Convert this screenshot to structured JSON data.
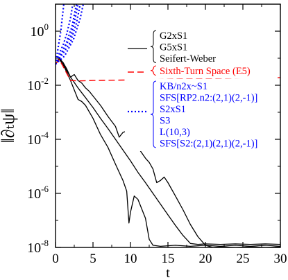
{
  "chart_data": {
    "type": "line",
    "xlabel": "t",
    "ylabel": "‖∂ₜψ‖",
    "xlim": [
      0,
      30
    ],
    "ylim": [
      1e-08,
      10
    ],
    "y_scale": "log",
    "x_ticks": [
      0,
      5,
      10,
      15,
      20,
      25,
      30
    ],
    "y_ticks": [
      {
        "value": 1,
        "base": "10",
        "exp": "0"
      },
      {
        "value": 0.01,
        "base": "10",
        "exp": "-2"
      },
      {
        "value": 0.0001,
        "base": "10",
        "exp": "-4"
      },
      {
        "value": 1e-06,
        "base": "10",
        "exp": "-6"
      },
      {
        "value": 1e-08,
        "base": "10",
        "exp": "-8"
      }
    ],
    "legend_groups": [
      {
        "style": "solid",
        "color": "#000000",
        "labels": [
          "G2xS1",
          "G5xS1",
          "Seifert-Weber"
        ]
      },
      {
        "style": "dashed",
        "color": "#ff0000",
        "labels": [
          "Sixth-Turn Space (E5)"
        ]
      },
      {
        "style": "dotted",
        "color": "#0000ff",
        "labels": [
          "KB/n2x~S1",
          "SFS[RP2.n2:(2,1)(2,-1)]",
          "S2xS1",
          "S3",
          "L(10,3)",
          "SFS[S2:(2,1)(2,1)(2,-1)]"
        ]
      }
    ],
    "series": [
      {
        "group": "solid",
        "color": "#000000",
        "points": [
          [
            0,
            0.06
          ],
          [
            0.5,
            0.1
          ],
          [
            1,
            0.07
          ],
          [
            1.5,
            0.04
          ],
          [
            2,
            0.02
          ],
          [
            3,
            0.008
          ],
          [
            4,
            0.0035
          ],
          [
            5,
            0.0015
          ],
          [
            6,
            0.0006
          ],
          [
            7,
            0.00025
          ],
          [
            8,
            0.0001
          ],
          [
            9,
            4e-05
          ],
          [
            10,
            1.6e-05
          ],
          [
            11,
            6e-06
          ],
          [
            12,
            2.5e-06
          ],
          [
            13,
            1e-06
          ],
          [
            14,
            4e-07
          ],
          [
            15,
            1.6e-07
          ],
          [
            16,
            6.5e-08
          ],
          [
            17,
            2.8e-08
          ],
          [
            18,
            1.4e-08
          ],
          [
            19,
            1.3e-08
          ],
          [
            20,
            1.35e-08
          ],
          [
            22,
            1.3e-08
          ],
          [
            24,
            1.35e-08
          ],
          [
            26,
            1.3e-08
          ],
          [
            28,
            1.35e-08
          ],
          [
            30,
            1.3e-08
          ]
        ]
      },
      {
        "group": "solid",
        "color": "#000000",
        "points": [
          [
            0,
            0.06
          ],
          [
            0.5,
            0.1
          ],
          [
            1,
            0.06
          ],
          [
            1.5,
            0.035
          ],
          [
            2,
            0.02
          ],
          [
            2.5,
            0.025
          ],
          [
            3,
            0.015
          ],
          [
            3.5,
            0.012
          ],
          [
            4,
            0.008
          ],
          [
            4.5,
            0.006
          ],
          [
            5,
            0.004
          ],
          [
            6,
            0.0018
          ],
          [
            7,
            0.0007
          ],
          [
            8,
            0.0003
          ],
          [
            8.5,
            0.00012
          ],
          [
            9,
            0.00018
          ],
          [
            9.5,
            0.0002
          ],
          [
            10,
            0.00012
          ],
          [
            11,
            5e-05
          ],
          [
            12,
            2e-05
          ],
          [
            12.5,
            1.4e-05
          ],
          [
            13,
            8e-06
          ],
          [
            13.5,
            2.5e-06
          ],
          [
            14,
            3e-06
          ],
          [
            14.5,
            4e-06
          ],
          [
            15,
            2.5e-06
          ],
          [
            16,
            8e-07
          ],
          [
            17,
            2.5e-07
          ],
          [
            18,
            7e-08
          ],
          [
            19,
            2.5e-08
          ],
          [
            20,
            1.2e-08
          ],
          [
            21,
            1e-08
          ],
          [
            22,
            1.05e-08
          ],
          [
            24,
            1e-08
          ],
          [
            26,
            1.05e-08
          ],
          [
            28,
            1e-08
          ],
          [
            30,
            1.05e-08
          ]
        ]
      },
      {
        "group": "solid",
        "color": "#000000",
        "points": [
          [
            0,
            0.06
          ],
          [
            0.5,
            0.09
          ],
          [
            1,
            0.06
          ],
          [
            2,
            0.015
          ],
          [
            3,
            0.003
          ],
          [
            3.5,
            0.0025
          ],
          [
            4,
            0.0018
          ],
          [
            5,
            0.0006
          ],
          [
            6,
            0.00015
          ],
          [
            7,
            5e-05
          ],
          [
            8,
            1.2e-05
          ],
          [
            9,
            3e-06
          ],
          [
            9.5,
            1.2e-06
          ],
          [
            9.8,
            8e-08
          ],
          [
            10,
            2e-07
          ],
          [
            10.5,
            8e-07
          ],
          [
            11,
            6e-07
          ],
          [
            12,
            1.2e-07
          ],
          [
            12.5,
            2e-08
          ],
          [
            13,
            1.2e-08
          ],
          [
            14,
            1.1e-08
          ],
          [
            16,
            1.2e-08
          ],
          [
            18,
            1.1e-08
          ],
          [
            20,
            1.2e-08
          ],
          [
            22,
            1.1e-08
          ],
          [
            24,
            1.2e-08
          ],
          [
            26,
            1.1e-08
          ],
          [
            28,
            1.2e-08
          ],
          [
            30,
            1.1e-08
          ]
        ]
      },
      {
        "group": "dashed",
        "color": "#ff0000",
        "points": [
          [
            0,
            0.06
          ],
          [
            0.5,
            0.09
          ],
          [
            1,
            0.05
          ],
          [
            2,
            0.015
          ],
          [
            3,
            0.0145
          ],
          [
            5,
            0.015
          ],
          [
            10,
            0.0157
          ],
          [
            15,
            0.0165
          ],
          [
            20,
            0.0175
          ],
          [
            25,
            0.0183
          ],
          [
            30,
            0.019
          ]
        ]
      },
      {
        "group": "dotted",
        "color": "#0000ff",
        "points": [
          [
            0,
            0.06
          ],
          [
            0.5,
            0.15
          ],
          [
            1,
            0.3
          ],
          [
            1.5,
            0.8
          ],
          [
            2,
            3
          ],
          [
            2.3,
            10
          ]
        ]
      },
      {
        "group": "dotted",
        "color": "#0000ff",
        "points": [
          [
            0,
            0.06
          ],
          [
            0.8,
            0.15
          ],
          [
            1.5,
            0.4
          ],
          [
            2.2,
            1.5
          ],
          [
            2.8,
            10
          ]
        ]
      },
      {
        "group": "dotted",
        "color": "#0000ff",
        "points": [
          [
            0,
            0.06
          ],
          [
            1,
            0.15
          ],
          [
            2,
            0.4
          ],
          [
            2.8,
            2
          ],
          [
            3.3,
            10
          ]
        ]
      },
      {
        "group": "dotted",
        "color": "#0000ff",
        "points": [
          [
            0,
            0.06
          ],
          [
            1,
            0.2
          ],
          [
            2,
            0.6
          ],
          [
            2.5,
            2
          ],
          [
            3,
            10
          ]
        ]
      },
      {
        "group": "dotted",
        "color": "#0000ff",
        "points": [
          [
            0,
            0.06
          ],
          [
            1.2,
            0.12
          ],
          [
            2.4,
            0.5
          ],
          [
            3.3,
            3
          ],
          [
            3.7,
            10
          ]
        ]
      },
      {
        "group": "dotted",
        "color": "#0000ff",
        "points": [
          [
            0,
            0.06
          ],
          [
            0.3,
            0.2
          ],
          [
            0.7,
            1
          ],
          [
            1.1,
            10
          ]
        ]
      }
    ]
  }
}
